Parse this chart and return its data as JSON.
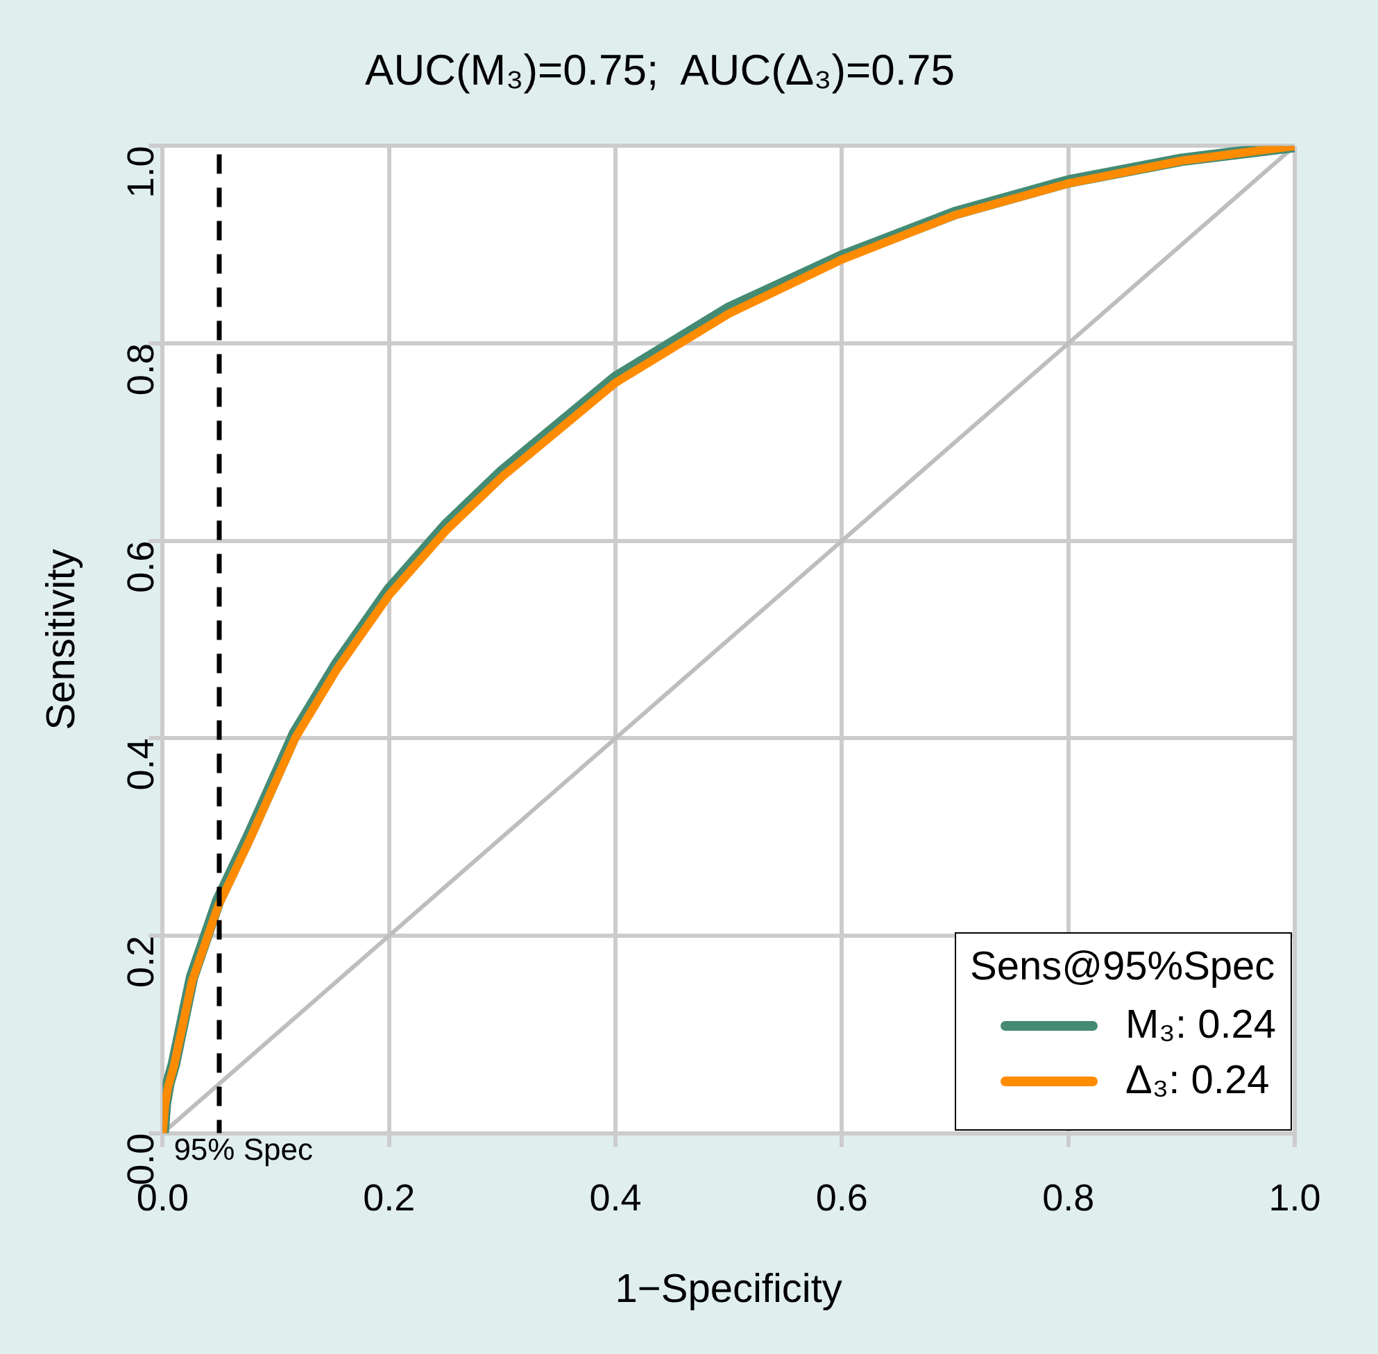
{
  "chart_data": {
    "type": "line",
    "title": "AUC(M₃)=0.75;  AUC(Δ₃)=0.75",
    "xlabel": "1−Specificity",
    "ylabel": "Sensitivity",
    "legend_title": "Sens@95%Spec",
    "xlim": [
      0,
      1
    ],
    "ylim": [
      0,
      1
    ],
    "xticks": [
      {
        "value": 0,
        "label": "0.0"
      },
      0.2,
      0.4,
      0.6,
      0.8,
      {
        "value": 1,
        "label": "1.0"
      }
    ],
    "yticks": [
      {
        "value": 0,
        "label": "0.0"
      },
      0.2,
      0.4,
      0.6,
      0.8,
      {
        "value": 1,
        "label": "1.0"
      }
    ],
    "grid": true,
    "legend": "bottom right",
    "marker": "none",
    "line_style": "solid",
    "ref_lines": [
      {
        "axis": "x",
        "value": 0.05,
        "label": "95% Spec",
        "color": "#000000",
        "line_style": "dashed"
      }
    ],
    "series": [
      {
        "color": "#bebebe",
        "x": [
          0,
          1
        ],
        "values": [
          0,
          1
        ]
      },
      {
        "name": "M₃: 0.24",
        "color": "#458b74",
        "x": [
          0,
          0.002,
          0.005,
          0.01,
          0.026,
          0.049,
          0.076,
          0.117,
          0.154,
          0.2,
          0.25,
          0.3,
          0.4,
          0.5,
          0.6,
          0.7,
          0.8,
          0.9,
          1
        ],
        "values": [
          0,
          0.03,
          0.05,
          0.07,
          0.158,
          0.235,
          0.3,
          0.405,
          0.475,
          0.55,
          0.615,
          0.67,
          0.765,
          0.835,
          0.888,
          0.932,
          0.964,
          0.986,
          1
        ]
      },
      {
        "name": "Δ₃: 0.24",
        "color": "#ff8c00",
        "x": [
          0,
          0.002,
          0.005,
          0.01,
          0.026,
          0.049,
          0.076,
          0.117,
          0.154,
          0.2,
          0.25,
          0.3,
          0.4,
          0.5,
          0.6,
          0.7,
          0.8,
          0.9,
          1
        ],
        "values": [
          0,
          0.028,
          0.048,
          0.068,
          0.154,
          0.23,
          0.295,
          0.4,
          0.47,
          0.545,
          0.61,
          0.665,
          0.76,
          0.83,
          0.885,
          0.93,
          0.962,
          0.985,
          1
        ]
      }
    ]
  }
}
